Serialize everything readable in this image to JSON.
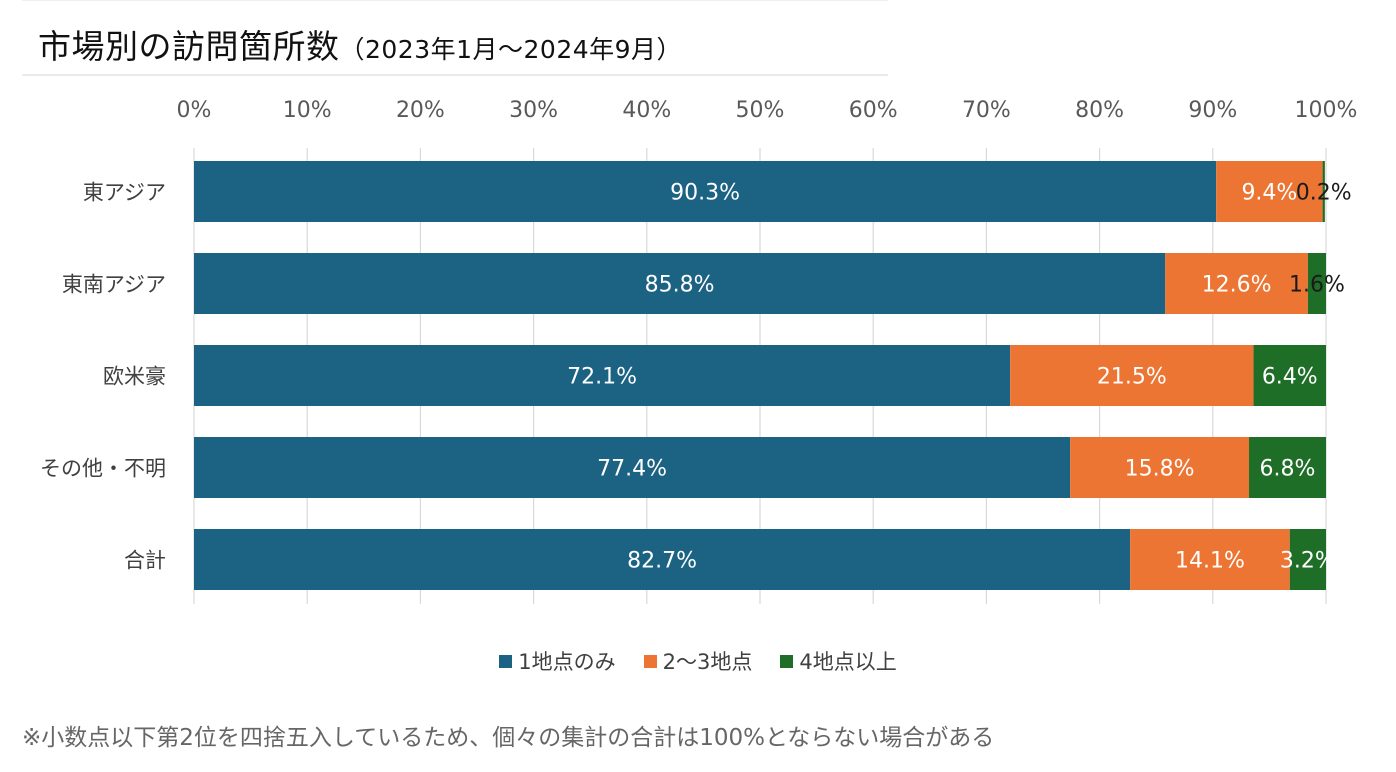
{
  "title": {
    "main": "市場別の訪問箇所数",
    "sub": "（2023年1月～2024年9月）"
  },
  "footnote": "※小数点以下第2位を四捨五入しているため、個々の集計の合計は100%とならない場合がある",
  "colors": {
    "series1": "#1b6283",
    "series2": "#ec7534",
    "series3": "#1f6e28",
    "grid": "#d9d9d9"
  },
  "chart_data": {
    "type": "bar",
    "orientation": "horizontal",
    "stacked": true,
    "title": "市場別の訪問箇所数（2023年1月～2024年9月）",
    "categories": [
      "東アジア",
      "東南アジア",
      "欧米豪",
      "その他・不明",
      "合計"
    ],
    "series": [
      {
        "name": "1地点のみ",
        "values": [
          90.3,
          85.8,
          72.1,
          77.4,
          82.7
        ],
        "labels": [
          "90.3%",
          "85.8%",
          "72.1%",
          "77.4%",
          "82.7%"
        ]
      },
      {
        "name": "2～3地点",
        "values": [
          9.4,
          12.6,
          21.5,
          15.8,
          14.1
        ],
        "labels": [
          "9.4%",
          "12.6%",
          "21.5%",
          "15.8%",
          "14.1%"
        ]
      },
      {
        "name": "4地点以上",
        "values": [
          0.2,
          1.6,
          6.4,
          6.8,
          3.2
        ],
        "labels": [
          "0.2%",
          "1.6%",
          "6.4%",
          "6.8%",
          "3.2%"
        ]
      }
    ],
    "xlim": [
      0,
      100
    ],
    "x_ticks": [
      "0%",
      "10%",
      "20%",
      "30%",
      "40%",
      "50%",
      "60%",
      "70%",
      "80%",
      "90%",
      "100%"
    ],
    "axis_position": "top",
    "grid": true,
    "legend": "bottom"
  }
}
